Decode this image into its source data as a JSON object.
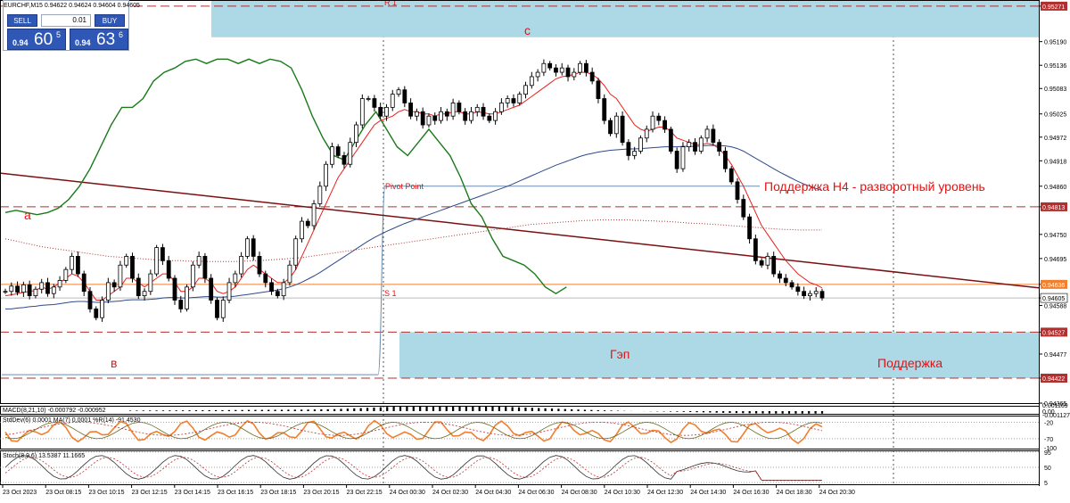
{
  "window": {
    "symbol_caption": "EURCHF,M15  0.94622 0.94624 0.94604 0.94605"
  },
  "trade_panel": {
    "sell_label": "SELL",
    "buy_label": "BUY",
    "lot_value": "0.01",
    "sell_prefix": "0.94",
    "sell_big": "60",
    "sell_sup": "5",
    "buy_prefix": "0.94",
    "buy_big": "63",
    "buy_sup": "6"
  },
  "chart_data": [
    {
      "type": "candlestick",
      "ylim": [
        0.94365,
        0.95285
      ],
      "y_ticks": [
        0.95271,
        0.9519,
        0.95136,
        0.95083,
        0.95025,
        0.94972,
        0.94918,
        0.9486,
        0.94813,
        0.9475,
        0.94695,
        0.94636,
        0.94605,
        0.94588,
        0.94527,
        0.94477,
        0.94422,
        0.94365
      ],
      "highlighted_ticks": [
        0.95271,
        0.94813,
        0.94636,
        0.94527,
        0.94422
      ],
      "current_price": 0.94605,
      "x_ticks": [
        "23 Oct 2023",
        "23 Oct 08:15",
        "23 Oct 10:15",
        "23 Oct 12:15",
        "23 Oct 14:15",
        "23 Oct 16:15",
        "23 Oct 18:15",
        "23 Oct 20:15",
        "23 Oct 22:15",
        "24 Oct 00:30",
        "24 Oct 02:30",
        "24 Oct 04:30",
        "24 Oct 06:30",
        "24 Oct 08:30",
        "24 Oct 10:30",
        "24 Oct 12:30",
        "24 Oct 14:30",
        "24 Oct 16:30",
        "24 Oct 18:30",
        "24 Oct 20:30"
      ],
      "close": [
        0.9462,
        0.94632,
        0.94618,
        0.94635,
        0.9461,
        0.94625,
        0.9464,
        0.94615,
        0.9463,
        0.94645,
        0.9467,
        0.947,
        0.9466,
        0.9462,
        0.9458,
        0.9456,
        0.946,
        0.9464,
        0.9463,
        0.9468,
        0.947,
        0.9465,
        0.9461,
        0.9462,
        0.9466,
        0.9472,
        0.9469,
        0.9465,
        0.946,
        0.9458,
        0.9463,
        0.9468,
        0.947,
        0.9465,
        0.946,
        0.9456,
        0.946,
        0.9464,
        0.9466,
        0.947,
        0.9474,
        0.947,
        0.9466,
        0.9464,
        0.9462,
        0.9461,
        0.9464,
        0.9468,
        0.9474,
        0.9478,
        0.9477,
        0.9482,
        0.9486,
        0.9491,
        0.9495,
        0.9493,
        0.9491,
        0.9496,
        0.95,
        0.9506,
        0.9506,
        0.9504,
        0.9502,
        0.9504,
        0.9507,
        0.9508,
        0.9505,
        0.9502,
        0.9503,
        0.95,
        0.9502,
        0.9501,
        0.9503,
        0.9502,
        0.9505,
        0.9503,
        0.9501,
        0.9503,
        0.9504,
        0.9502,
        0.9501,
        0.9503,
        0.9505,
        0.9506,
        0.9505,
        0.9507,
        0.9509,
        0.9511,
        0.9512,
        0.9514,
        0.9513,
        0.9512,
        0.9513,
        0.9511,
        0.9512,
        0.9514,
        0.9512,
        0.951,
        0.9506,
        0.9501,
        0.9498,
        0.9502,
        0.9496,
        0.9493,
        0.9494,
        0.9497,
        0.9499,
        0.9502,
        0.9501,
        0.9499,
        0.9494,
        0.949,
        0.9495,
        0.9496,
        0.9494,
        0.9497,
        0.9499,
        0.9496,
        0.9494,
        0.949,
        0.9487,
        0.9483,
        0.9479,
        0.9474,
        0.9469,
        0.9468,
        0.947,
        0.9466,
        0.9465,
        0.9464,
        0.9463,
        0.9462,
        0.9461,
        0.94615,
        0.9462,
        0.94605
      ],
      "lines": [
        {
          "key": "ma_fast",
          "color": "#e8201c",
          "values": [
            0.9461,
            0.94612,
            0.94615,
            0.94618,
            0.9462,
            0.94622,
            0.9463,
            0.94625,
            0.9463,
            0.9464,
            0.9465,
            0.9466,
            0.94655,
            0.9464,
            0.9462,
            0.946,
            0.946,
            0.9461,
            0.9462,
            0.9463,
            0.9465,
            0.9465,
            0.9464,
            0.9463,
            0.9464,
            0.9465,
            0.9466,
            0.9466,
            0.9464,
            0.9462,
            0.9462,
            0.9463,
            0.9465,
            0.9465,
            0.9464,
            0.9462,
            0.94615,
            0.9462,
            0.9463,
            0.9465,
            0.9467,
            0.9468,
            0.9467,
            0.9466,
            0.9465,
            0.9464,
            0.9464,
            0.9465,
            0.9467,
            0.947,
            0.9473,
            0.9476,
            0.9479,
            0.9482,
            0.9485,
            0.9488,
            0.949,
            0.9492,
            0.9494,
            0.9496,
            0.9498,
            0.95,
            0.9501,
            0.95015,
            0.9502,
            0.9503,
            0.95035,
            0.9503,
            0.9503,
            0.95025,
            0.95025,
            0.9502,
            0.95025,
            0.95025,
            0.9503,
            0.9503,
            0.95025,
            0.95025,
            0.9503,
            0.95028,
            0.95025,
            0.95025,
            0.9503,
            0.95035,
            0.9504,
            0.95045,
            0.95055,
            0.95065,
            0.95075,
            0.95085,
            0.95095,
            0.95105,
            0.9511,
            0.95112,
            0.95115,
            0.9512,
            0.9512,
            0.95115,
            0.95105,
            0.9509,
            0.9507,
            0.9506,
            0.9504,
            0.9502,
            0.95,
            0.9499,
            0.94985,
            0.9499,
            0.94995,
            0.94995,
            0.94985,
            0.9497,
            0.94965,
            0.9496,
            0.94955,
            0.94955,
            0.94958,
            0.94955,
            0.94945,
            0.9493,
            0.9491,
            0.94885,
            0.9486,
            0.9483,
            0.948,
            0.9477,
            0.9475,
            0.9473,
            0.9471,
            0.9469,
            0.94675,
            0.9466,
            0.9465,
            0.9464,
            0.94635,
            0.94628
          ]
        },
        {
          "key": "ma_slow",
          "color": "#2e4a8c",
          "values": [
            0.9458,
            0.9458,
            0.94582,
            0.94583,
            0.94585,
            0.94586,
            0.94588,
            0.94589,
            0.9459,
            0.94592,
            0.94594,
            0.94596,
            0.94597,
            0.94597,
            0.94596,
            0.94595,
            0.94595,
            0.94596,
            0.94597,
            0.94598,
            0.946,
            0.94601,
            0.94601,
            0.94601,
            0.94602,
            0.94603,
            0.94605,
            0.94606,
            0.94606,
            0.94605,
            0.94605,
            0.94606,
            0.94607,
            0.94608,
            0.94608,
            0.94607,
            0.94607,
            0.94608,
            0.94609,
            0.94611,
            0.94613,
            0.94615,
            0.94617,
            0.94619,
            0.94621,
            0.94623,
            0.94626,
            0.9463,
            0.94635,
            0.94641,
            0.94648,
            0.94655,
            0.94663,
            0.94672,
            0.94681,
            0.9469,
            0.94699,
            0.94708,
            0.94717,
            0.94726,
            0.94735,
            0.94743,
            0.9475,
            0.94757,
            0.94763,
            0.94769,
            0.94775,
            0.9478,
            0.94785,
            0.9479,
            0.94795,
            0.948,
            0.94805,
            0.9481,
            0.94815,
            0.9482,
            0.94825,
            0.9483,
            0.94835,
            0.9484,
            0.94845,
            0.9485,
            0.94855,
            0.9486,
            0.94866,
            0.94872,
            0.94878,
            0.94884,
            0.9489,
            0.94896,
            0.94902,
            0.94908,
            0.94913,
            0.94918,
            0.94923,
            0.94928,
            0.94932,
            0.94935,
            0.94938,
            0.9494,
            0.94942,
            0.94943,
            0.94944,
            0.94945,
            0.94945,
            0.94946,
            0.94947,
            0.94948,
            0.94949,
            0.9495,
            0.9495,
            0.9495,
            0.94951,
            0.94951,
            0.94951,
            0.94952,
            0.94953,
            0.94953,
            0.94953,
            0.94952,
            0.9495,
            0.94946,
            0.9494,
            0.94932,
            0.94924,
            0.94916,
            0.94908,
            0.949,
            0.94892,
            0.94885,
            0.94878,
            0.94871,
            0.94865,
            0.9486,
            0.94855,
            0.9485
          ]
        },
        {
          "key": "ma_dotted",
          "color": "#b03030",
          "values": [
            0.9474,
            0.94737,
            0.94734,
            0.94731,
            0.94728,
            0.94725,
            0.94722,
            0.9472,
            0.94718,
            0.94716,
            0.94714,
            0.94712,
            0.9471,
            0.94708,
            0.94706,
            0.94704,
            0.94702,
            0.947,
            0.94699,
            0.94698,
            0.94697,
            0.94696,
            0.94695,
            0.94694,
            0.94693,
            0.94692,
            0.94691,
            0.9469,
            0.9469,
            0.9469,
            0.94689,
            0.94689,
            0.94689,
            0.94688,
            0.94688,
            0.94688,
            0.94688,
            0.94688,
            0.94688,
            0.94689,
            0.94689,
            0.9469,
            0.9469,
            0.94691,
            0.94692,
            0.94693,
            0.94694,
            0.94695,
            0.94696,
            0.94697,
            0.94699,
            0.94701,
            0.94703,
            0.94705,
            0.94707,
            0.94709,
            0.94711,
            0.94713,
            0.94715,
            0.94717,
            0.94719,
            0.94721,
            0.94723,
            0.94725,
            0.94727,
            0.94729,
            0.94731,
            0.94733,
            0.94735,
            0.94737,
            0.94739,
            0.94741,
            0.94743,
            0.94745,
            0.94747,
            0.94749,
            0.94751,
            0.94753,
            0.94755,
            0.94757,
            0.94759,
            0.94761,
            0.94763,
            0.94765,
            0.94767,
            0.94769,
            0.94771,
            0.94773,
            0.94774,
            0.94775,
            0.94776,
            0.94777,
            0.94778,
            0.94779,
            0.9478,
            0.94781,
            0.94782,
            0.94782,
            0.94783,
            0.94783,
            0.94783,
            0.94783,
            0.94783,
            0.94783,
            0.94782,
            0.94782,
            0.94781,
            0.94781,
            0.9478,
            0.9478,
            0.94779,
            0.94778,
            0.94777,
            0.94776,
            0.94775,
            0.94775,
            0.94774,
            0.94773,
            0.94772,
            0.94771,
            0.9477,
            0.94769,
            0.94768,
            0.94767,
            0.94766,
            0.94765,
            0.94764,
            0.94763,
            0.94762,
            0.94761,
            0.94761,
            0.9476,
            0.9476,
            0.9476,
            0.9476,
            0.9476
          ]
        }
      ],
      "green_line": [
        0.948,
        0.94805,
        0.948,
        0.94795,
        0.948,
        0.9481,
        0.9483,
        0.9486,
        0.949,
        0.9495,
        0.95,
        0.9504,
        0.9504,
        0.9506,
        0.951,
        0.9512,
        0.9513,
        0.95145,
        0.9515,
        0.9514,
        0.9515,
        0.9515,
        0.9514,
        0.9515,
        0.9514,
        0.9515,
        0.95145,
        0.9513,
        0.9508,
        0.9502,
        0.9497,
        0.9493,
        0.9492,
        0.9496,
        0.95,
        0.9503,
        0.9499,
        0.9495,
        0.9493,
        0.9496,
        0.9499,
        0.9496,
        0.9493,
        0.9488,
        0.9482,
        0.9479,
        0.9474,
        0.947,
        0.9469,
        0.9468,
        0.9466,
        0.9463,
        0.94615,
        0.9463
      ],
      "green_start_index": 0,
      "green_step_bars": 1.75
    },
    {
      "type": "histogram",
      "indicator": "MACD(8,21,10)",
      "values_label": "-0.000792 -0.000952",
      "ticks": [
        "0.001169",
        "0.00",
        "-0.001127"
      ],
      "values": [
        0.0001,
        0.00011,
        0.00012,
        0.00012,
        0.00013,
        0.00013,
        0.00014,
        0.00014,
        0.00015,
        0.00016,
        0.00017,
        0.00018,
        0.00019,
        0.0002,
        0.0002,
        0.00021,
        0.00022,
        0.00023,
        0.00024,
        0.00025,
        0.00025,
        0.00026,
        0.00027,
        0.00027,
        0.00028,
        0.00029,
        0.0003,
        0.00031,
        0.00033,
        0.00035,
        0.00037,
        0.0004,
        0.00045,
        0.0005,
        0.00055,
        0.0006,
        0.00066,
        0.00072,
        0.00078,
        0.00084,
        0.00088,
        0.00092,
        0.00095,
        0.00098,
        0.001,
        0.00102,
        0.00104,
        0.00105,
        0.00106,
        0.00106,
        0.00105,
        0.00104,
        0.00102,
        0.001,
        0.00097,
        0.00094,
        0.0009,
        0.00086,
        0.00082,
        0.00077,
        0.00072,
        0.00067,
        0.00062,
        0.00057,
        0.00052,
        0.00047,
        0.00042,
        0.00037,
        0.00032,
        0.00027,
        0.00023,
        0.00019,
        0.00015,
        0.00011,
        8e-05,
        5e-05,
        2e-05,
        -1e-05,
        -4e-05,
        -8e-05,
        -0.00012,
        -0.00016,
        -0.0002,
        -0.00025,
        -0.0003,
        -0.00036,
        -0.00042,
        -0.00048,
        -0.00054,
        -0.0006,
        -0.00066,
        -0.00071,
        -0.00076,
        -0.0008,
        -0.00084,
        -0.00087,
        -0.0009,
        -0.00092,
        -0.00094,
        -0.00095,
        -0.00095,
        -0.00095,
        -0.00095,
        -0.00095,
        -0.00095,
        -0.00095
      ]
    },
    {
      "type": "line",
      "indicator": "StdDev(6) 0.0001 MA(7) 0.0001 %R(14) -91.4530",
      "ticks": [
        "-20",
        "-70",
        "-100"
      ],
      "ylim": [
        -100,
        0
      ]
    },
    {
      "type": "line",
      "indicator": "Stoch(8,9,6) 13.5387 11.1665",
      "ticks": [
        "95",
        "50",
        "5"
      ],
      "ylim": [
        0,
        100
      ]
    }
  ],
  "annotations": {
    "label_a": "а",
    "label_b": "в",
    "label_c": "с",
    "pivot_point": "Pivot Point",
    "r1": "R 1",
    "s1": "S 1",
    "support_h4": "Поддержка H4 - разворотный уровень",
    "gap": "Гэп",
    "support": "Поддержка"
  },
  "colors": {
    "bg": "#ffffff",
    "candle": "#000000",
    "zone": "#add8e6",
    "dash_level": "#b03030",
    "trend": "#7a1010",
    "annotation_text": "#e81010",
    "orange": "#f08030",
    "grid": "#c8c8c8"
  }
}
